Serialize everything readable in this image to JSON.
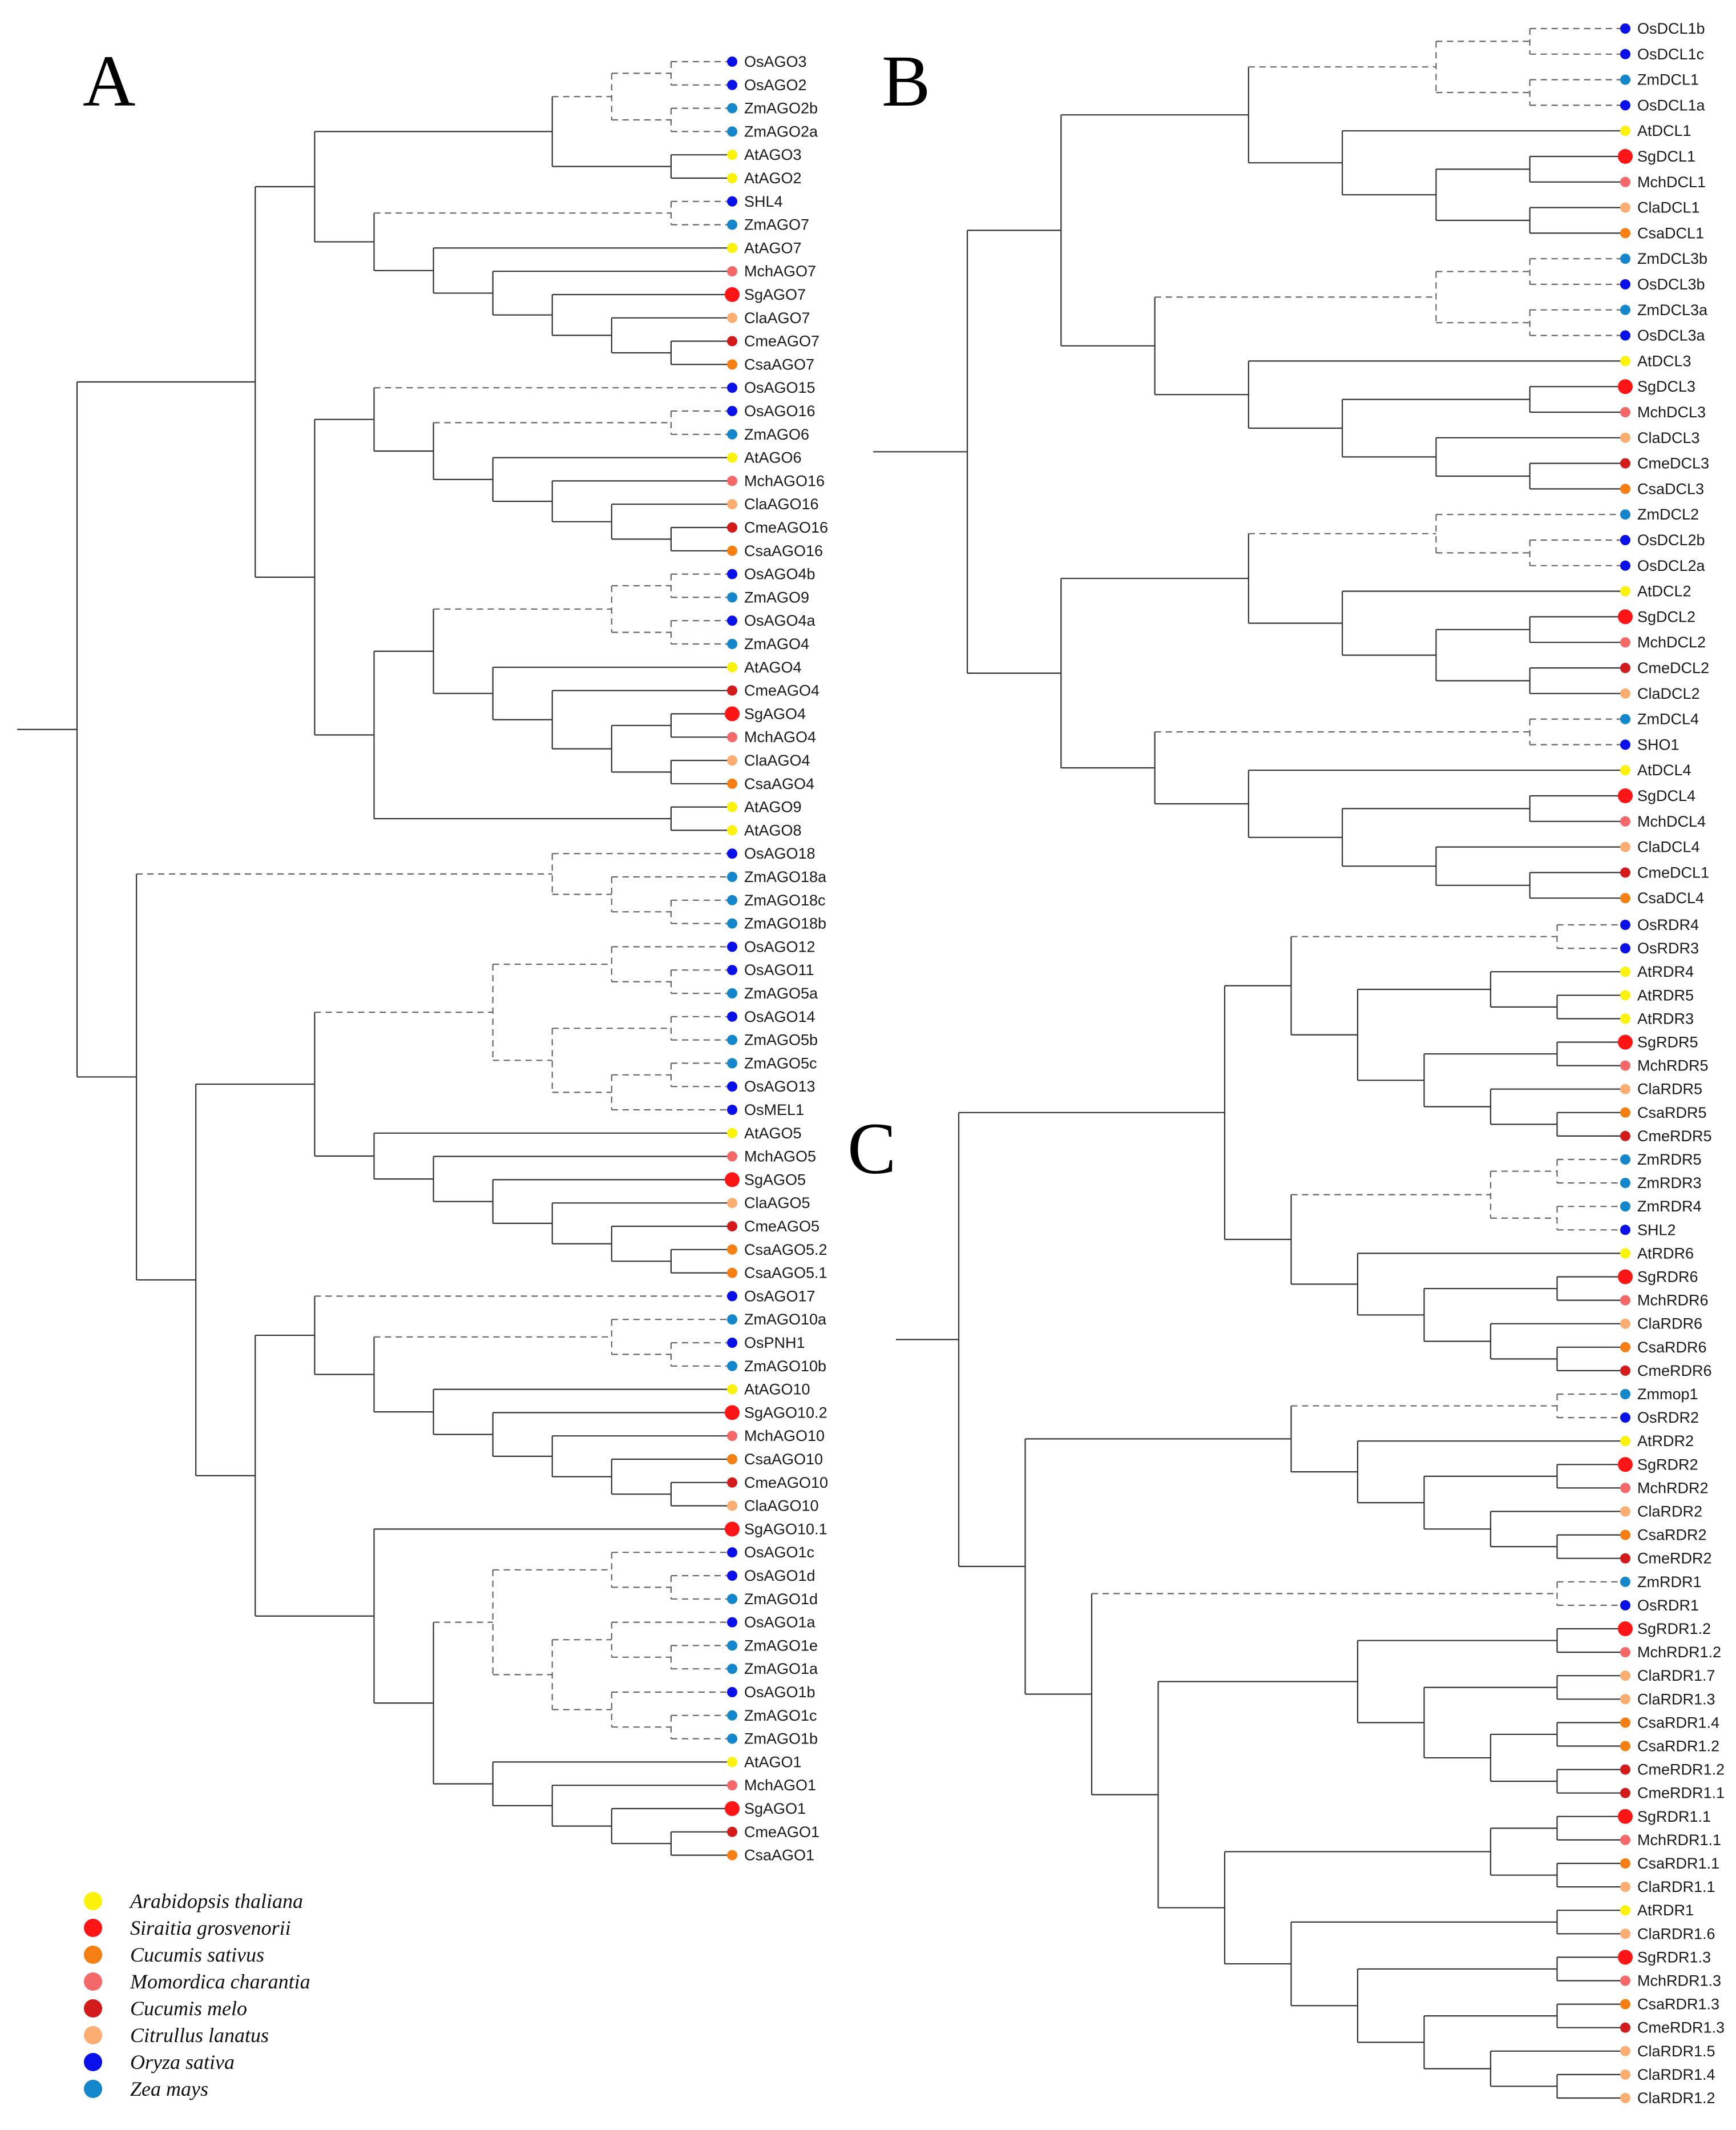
{
  "species_colors": {
    "At": "#fbf20b",
    "Sg": "#ff1515",
    "Csa": "#f57f12",
    "Mch": "#f56869",
    "Cme": "#d31b1b",
    "Cla": "#fbad72",
    "Os": "#0a10e8",
    "Zm": "#1386cc",
    "SHL4": "#0a10e8",
    "SHO1": "#0a10e8",
    "SHL2": "#0a10e8",
    "Zmmop1": "#1386cc"
  },
  "panels": [
    {
      "letter": "A",
      "tree": "((((((OsAGO3,OsAGO2),(ZmAGO2b,ZmAGO2a)),(AtAGO3,AtAGO2)),((SHL4,ZmAGO7),(AtAGO7,(MchAGO7,(SgAGO7,(ClaAGO7,(CmeAGO7,CsaAGO7))))))),((OsAGO15,((OsAGO16,ZmAGO6),(AtAGO6,(MchAGO16,(ClaAGO16,(CmeAGO16,CsaAGO16)))))),((((OsAGO4b,ZmAGO9),(OsAGO4a,ZmAGO4)),(AtAGO4,(CmeAGO4,((SgAGO4,MchAGO4),(ClaAGO4,CsaAGO4))))),(AtAGO9,AtAGO8)))),((OsAGO18,(ZmAGO18a,(ZmAGO18c,ZmAGO18b))),((((OsAGO12,(OsAGO11,ZmAGO5a)),((OsAGO14,ZmAGO5b),((ZmAGO5c,OsAGO13),OsMEL1))),(AtAGO5,(MchAGO5,(SgAGO5,(ClaAGO5,(CmeAGO5,(CsaAGO5.2,CsaAGO5.1))))))),((OsAGO17,((ZmAGO10a,(OsPNH1,ZmAGO10b)),(AtAGO10,(SgAGO10.2,(MchAGO10,(CsaAGO10,(CmeAGO10,ClaAGO10))))))),((SgAGO10.1),(((OsAGO1c,(OsAGO1d,ZmAGO1d)),((OsAGO1a,(ZmAGO1e,ZmAGO1a)),(OsAGO1b,(ZmAGO1c,ZmAGO1b)))),(AtAGO1,(MchAGO1,(SgAGO1,(CmeAGO1,CsaAGO1))))))))));"
    },
    {
      "letter": "B",
      "tree": "(((((OsDCL1b,OsDCL1c),(ZmDCL1,OsDCL1a)),(AtDCL1,((SgDCL1,MchDCL1),(ClaDCL1,CsaDCL1)))),(((ZmDCL3b,OsDCL3b),(ZmDCL3a,OsDCL3a)),(AtDCL3,((SgDCL3,MchDCL3),(ClaDCL3,(CmeDCL3,CsaDCL3)))))),(((ZmDCL2,(OsDCL2b,OsDCL2a)),(AtDCL2,((SgDCL2,MchDCL2),(CmeDCL2,ClaDCL2)))),((ZmDCL4,SHO1),(AtDCL4,((SgDCL4,MchDCL4),(ClaDCL4,(CmeDCL1,CsaDCL4)))))));"
    },
    {
      "letter": "C",
      "tree": "((((OsRDR4,OsRDR3),((AtRDR4,(AtRDR5,AtRDR3)),((SgRDR5,MchRDR5),(ClaRDR5,(CsaRDR5,CmeRDR5))))),(((ZmRDR5,ZmRDR3),(ZmRDR4,SHL2)),(AtRDR6,((SgRDR6,MchRDR6),(ClaRDR6,(CsaRDR6,CmeRDR6)))))),(((Zmmop1,OsRDR2),(AtRDR2,((SgRDR2,MchRDR2),(ClaRDR2,(CsaRDR2,CmeRDR2))))),((ZmRDR1,OsRDR1),(((SgRDR1.2,MchRDR1.2),((ClaRDR1.7,ClaRDR1.3),((CsaRDR1.4,CsaRDR1.2),(CmeRDR1.2,CmeRDR1.1)))),(((SgRDR1.1,MchRDR1.1),(CsaRDR1.1,ClaRDR1.1)),((AtRDR1,ClaRDR1.6),((SgRDR1.3,MchRDR1.3),((CsaRDR1.3,CmeRDR1.3),(ClaRDR1.5,(ClaRDR1.4,ClaRDR1.2))))))))));"
    }
  ],
  "legend": [
    {
      "label": "Arabidopsis thaliana",
      "color": "#fbf20b"
    },
    {
      "label": "Siraitia grosvenorii",
      "color": "#ff1515"
    },
    {
      "label": "Cucumis sativus",
      "color": "#f57f12"
    },
    {
      "label": "Momordica charantia",
      "color": "#f56869"
    },
    {
      "label": "Cucumis melo",
      "color": "#d31b1b"
    },
    {
      "label": "Citrullus lanatus",
      "color": "#fbad72"
    },
    {
      "label": "Oryza sativa",
      "color": "#0a10e8"
    },
    {
      "label": "Zea mays",
      "color": "#1386cc"
    }
  ]
}
